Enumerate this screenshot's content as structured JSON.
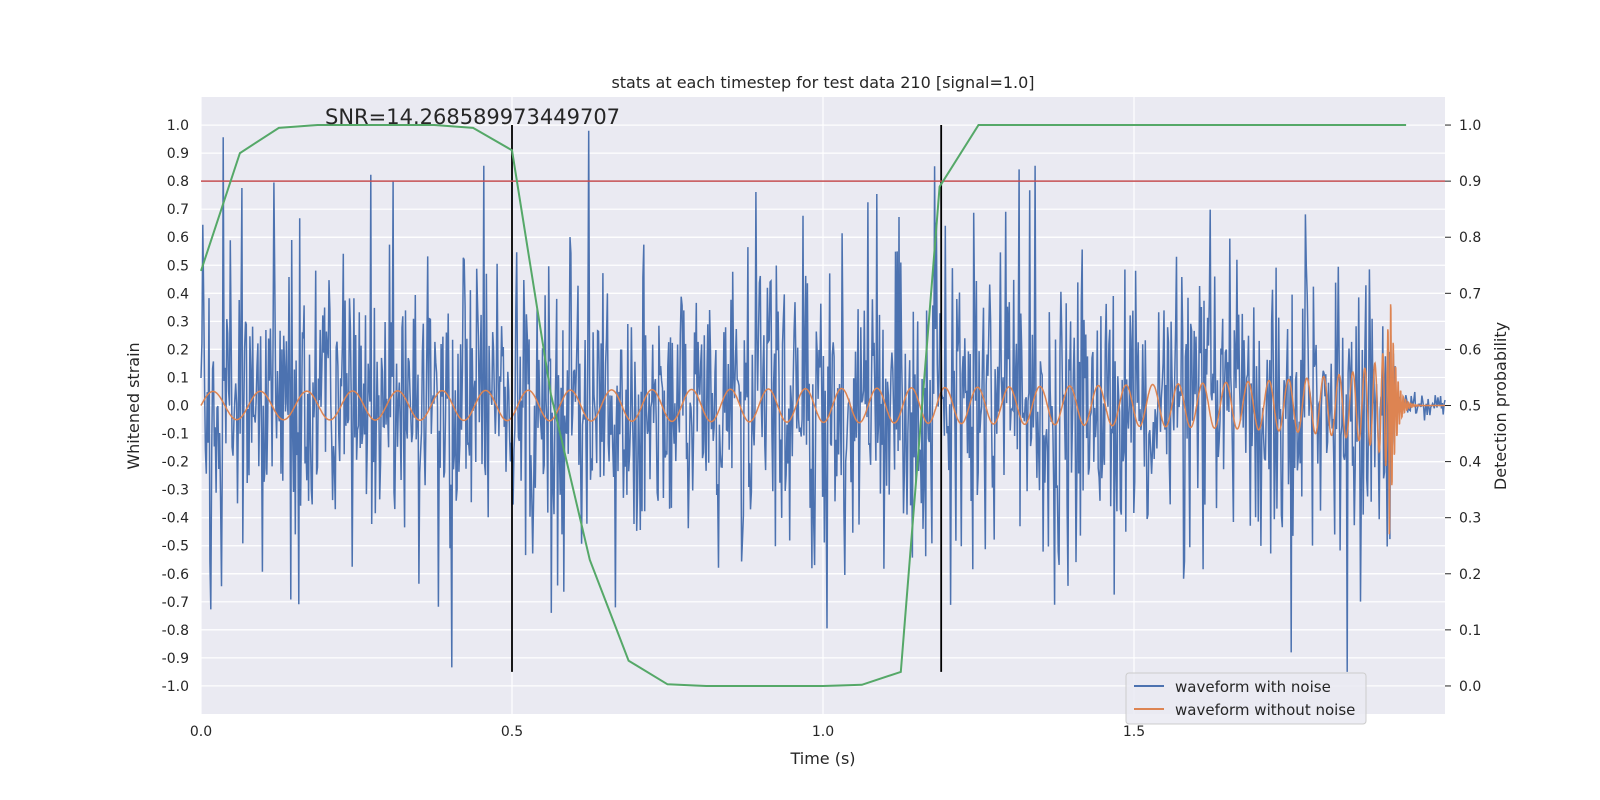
{
  "chart_data": {
    "type": "line",
    "title": "stats at each timestep for test data 210 [signal=1.0]",
    "annotation": "SNR=14.268589973449707",
    "xlabel": "Time (s)",
    "ylabel_left": "Whitened strain",
    "ylabel_right": "Detection probability",
    "xlim": [
      0.0,
      2.0
    ],
    "ylim_left": [
      -1.1,
      1.1
    ],
    "ylim_right": [
      -0.05,
      1.05
    ],
    "x_ticks": [
      "0.0",
      "0.5",
      "1.0",
      "1.5"
    ],
    "y_left_ticks": [
      "1.0",
      "0.9",
      "0.8",
      "0.7",
      "0.6",
      "0.5",
      "0.4",
      "0.3",
      "0.2",
      "0.1",
      "0.0",
      "-0.1",
      "-0.2",
      "-0.3",
      "-0.4",
      "-0.5",
      "-0.6",
      "-0.7",
      "-0.8",
      "-0.9",
      "-1.0"
    ],
    "y_right_ticks": [
      "1.0",
      "0.9",
      "0.8",
      "0.7",
      "0.6",
      "0.5",
      "0.4",
      "0.3",
      "0.2",
      "0.1",
      "0.0"
    ],
    "grid": true,
    "legend_position": "lower-right",
    "threshold_line": {
      "y_right": 0.9,
      "color": "#c44e52"
    },
    "vertical_markers": [
      {
        "x": 0.5,
        "y_from": -0.95,
        "y_to": 1.0,
        "color": "#000000"
      },
      {
        "x": 1.19,
        "y_from": -0.95,
        "y_to": 1.0,
        "color": "#000000"
      }
    ],
    "series": [
      {
        "name": "waveform with noise",
        "color": "#4c72b0",
        "axis": "left",
        "x_range": [
          0.0,
          2.0
        ],
        "sample_count": 1400,
        "approx_amplitude": 0.45,
        "max": 1.0,
        "min": -0.95
      },
      {
        "name": "waveform without noise",
        "color": "#dd8452",
        "axis": "left",
        "description": "chirp",
        "x_range": [
          0.0,
          2.0
        ],
        "start_amplitude": 0.05,
        "peak_amplitude": 0.53,
        "peak_x": 1.91
      },
      {
        "color": "#55a868",
        "axis": "right",
        "x": [
          0.0,
          0.0625,
          0.125,
          0.1875,
          0.25,
          0.3125,
          0.375,
          0.4375,
          0.5,
          0.5625,
          0.625,
          0.6875,
          0.75,
          0.8125,
          0.875,
          0.9375,
          1.0,
          1.0625,
          1.125,
          1.1875,
          1.25,
          1.3125,
          1.375,
          1.4375,
          1.5,
          1.5625,
          1.625,
          1.6875,
          1.75,
          1.8125,
          1.875,
          1.9375
        ],
        "values": [
          0.74,
          0.95,
          0.995,
          1.0,
          1.0,
          1.0,
          1.0,
          0.995,
          0.955,
          0.52,
          0.225,
          0.045,
          0.003,
          0.0,
          0.0,
          0.0,
          0.0,
          0.002,
          0.025,
          0.89,
          1.0,
          1.0,
          1.0,
          1.0,
          1.0,
          1.0,
          1.0,
          1.0,
          1.0,
          1.0,
          1.0,
          1.0
        ]
      }
    ]
  }
}
